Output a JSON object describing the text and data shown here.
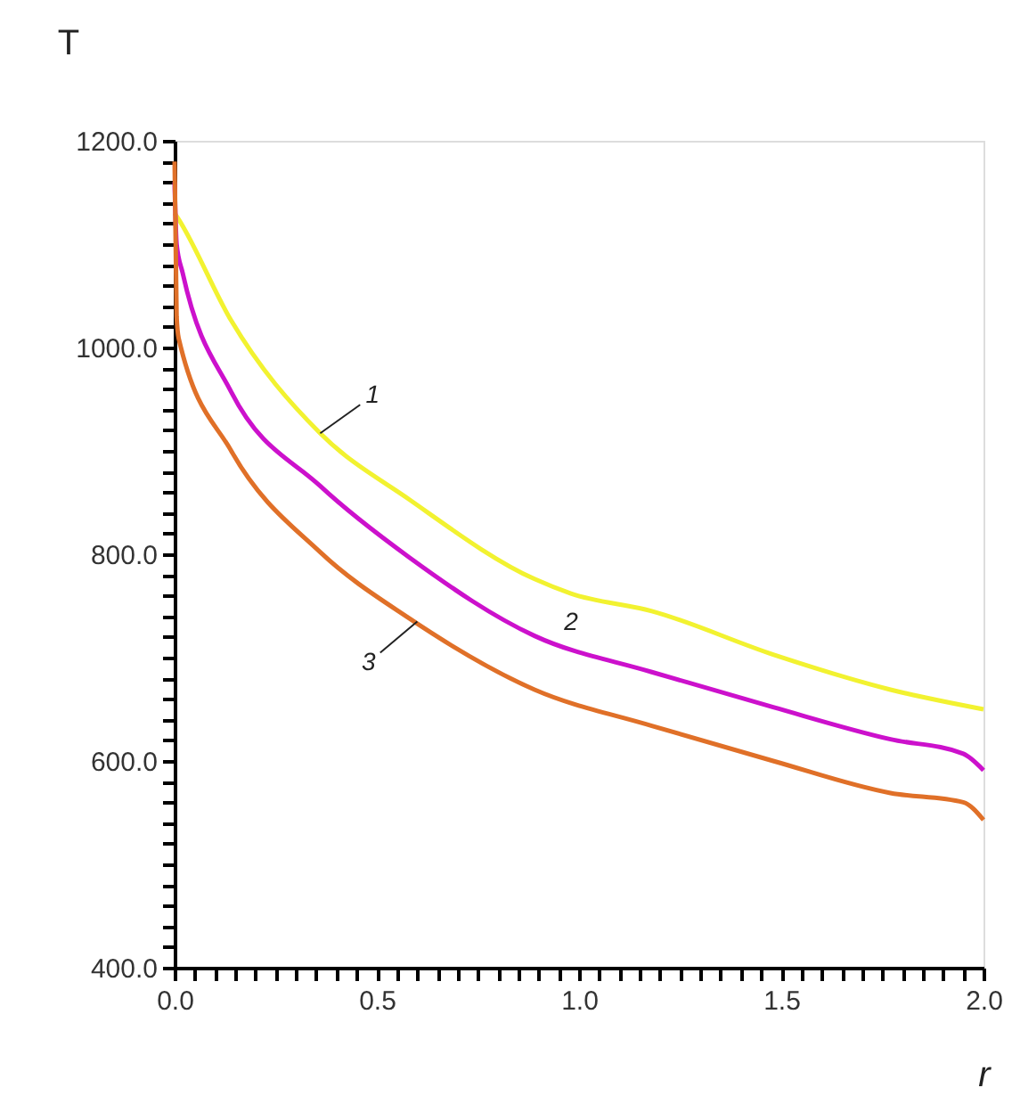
{
  "chart_data": {
    "type": "line",
    "xlabel": "r",
    "ylabel": "T",
    "xlim": [
      0,
      2.0
    ],
    "ylim": [
      400,
      1200
    ],
    "xticks": [
      {
        "value": 0,
        "label": "0.0"
      },
      {
        "value": 0.05,
        "label": null
      },
      {
        "value": 0.1,
        "label": null
      },
      {
        "value": 0.15,
        "label": null
      },
      {
        "value": 0.2,
        "label": null
      },
      {
        "value": 0.25,
        "label": null
      },
      {
        "value": 0.3,
        "label": null
      },
      {
        "value": 0.35,
        "label": null
      },
      {
        "value": 0.4,
        "label": null
      },
      {
        "value": 0.45,
        "label": null
      },
      {
        "value": 0.5,
        "label": "0.5"
      },
      {
        "value": 0.55,
        "label": null
      },
      {
        "value": 0.6,
        "label": null
      },
      {
        "value": 0.65,
        "label": null
      },
      {
        "value": 0.7,
        "label": null
      },
      {
        "value": 0.75,
        "label": null
      },
      {
        "value": 0.8,
        "label": null
      },
      {
        "value": 0.85,
        "label": null
      },
      {
        "value": 0.9,
        "label": null
      },
      {
        "value": 0.95,
        "label": null
      },
      {
        "value": 1.0,
        "label": "1.0"
      },
      {
        "value": 1.05,
        "label": null
      },
      {
        "value": 1.1,
        "label": null
      },
      {
        "value": 1.15,
        "label": null
      },
      {
        "value": 1.2,
        "label": null
      },
      {
        "value": 1.25,
        "label": null
      },
      {
        "value": 1.3,
        "label": null
      },
      {
        "value": 1.35,
        "label": null
      },
      {
        "value": 1.4,
        "label": null
      },
      {
        "value": 1.45,
        "label": null
      },
      {
        "value": 1.5,
        "label": "1.5"
      },
      {
        "value": 1.55,
        "label": null
      },
      {
        "value": 1.6,
        "label": null
      },
      {
        "value": 1.65,
        "label": null
      },
      {
        "value": 1.7,
        "label": null
      },
      {
        "value": 1.75,
        "label": null
      },
      {
        "value": 1.8,
        "label": null
      },
      {
        "value": 1.85,
        "label": null
      },
      {
        "value": 1.9,
        "label": null
      },
      {
        "value": 1.95,
        "label": null
      },
      {
        "value": 2.0,
        "label": "2.0"
      }
    ],
    "yticks": [
      {
        "value": 400,
        "label": "400.0"
      },
      {
        "value": 420,
        "label": null
      },
      {
        "value": 440,
        "label": null
      },
      {
        "value": 460,
        "label": null
      },
      {
        "value": 480,
        "label": null
      },
      {
        "value": 500,
        "label": null
      },
      {
        "value": 520,
        "label": null
      },
      {
        "value": 540,
        "label": null
      },
      {
        "value": 560,
        "label": null
      },
      {
        "value": 580,
        "label": null
      },
      {
        "value": 600,
        "label": "600.0"
      },
      {
        "value": 620,
        "label": null
      },
      {
        "value": 640,
        "label": null
      },
      {
        "value": 660,
        "label": null
      },
      {
        "value": 680,
        "label": null
      },
      {
        "value": 700,
        "label": null
      },
      {
        "value": 720,
        "label": null
      },
      {
        "value": 740,
        "label": null
      },
      {
        "value": 760,
        "label": null
      },
      {
        "value": 780,
        "label": null
      },
      {
        "value": 800,
        "label": "800.0"
      },
      {
        "value": 820,
        "label": null
      },
      {
        "value": 840,
        "label": null
      },
      {
        "value": 860,
        "label": null
      },
      {
        "value": 880,
        "label": null
      },
      {
        "value": 900,
        "label": null
      },
      {
        "value": 920,
        "label": null
      },
      {
        "value": 940,
        "label": null
      },
      {
        "value": 960,
        "label": null
      },
      {
        "value": 980,
        "label": null
      },
      {
        "value": 1000,
        "label": "1000.0"
      },
      {
        "value": 1020,
        "label": null
      },
      {
        "value": 1040,
        "label": null
      },
      {
        "value": 1060,
        "label": null
      },
      {
        "value": 1080,
        "label": null
      },
      {
        "value": 1100,
        "label": null
      },
      {
        "value": 1120,
        "label": null
      },
      {
        "value": 1140,
        "label": null
      },
      {
        "value": 1160,
        "label": null
      },
      {
        "value": 1180,
        "label": null
      },
      {
        "value": 1200,
        "label": "1200.0"
      }
    ],
    "grid": false,
    "legend": false,
    "marker": "none",
    "line_style": "solid",
    "series": [
      {
        "color": "#f2f230",
        "x": [
          0,
          0.01,
          0.14,
          0.36,
          0.58,
          0.89,
          0.98,
          1.18,
          1.48,
          1.77,
          2.0
        ],
        "values": [
          1130,
          1124,
          1026,
          917,
          853,
          776,
          762,
          745,
          703,
          669,
          650
        ]
      },
      {
        "color": "#cc11cc",
        "x": [
          0,
          0.005,
          0.02,
          0.14,
          0.36,
          0.58,
          0.89,
          1.18,
          1.48,
          1.77,
          1.95,
          2.0
        ],
        "values": [
          1160,
          1100,
          1072,
          957,
          866,
          797,
          721,
          686,
          652,
          621,
          607,
          591
        ]
      },
      {
        "color": "#e07028",
        "x": [
          0,
          0.005,
          0.01,
          0.14,
          0.36,
          0.58,
          0.89,
          1.18,
          1.48,
          1.77,
          1.95,
          2.0
        ],
        "values": [
          1180,
          1030,
          1009,
          900,
          802,
          738,
          669,
          634,
          600,
          569,
          560,
          543
        ]
      }
    ],
    "annotations": [
      {
        "text": "1",
        "x": 0.36,
        "y": 917
      },
      {
        "text": "2",
        "x": 0.98,
        "y": 710
      },
      {
        "text": "3",
        "x": 0.6,
        "y": 735
      }
    ]
  }
}
